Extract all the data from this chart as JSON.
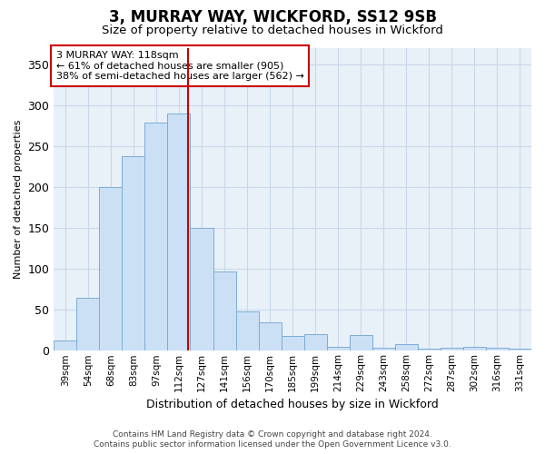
{
  "title": "3, MURRAY WAY, WICKFORD, SS12 9SB",
  "subtitle": "Size of property relative to detached houses in Wickford",
  "xlabel": "Distribution of detached houses by size in Wickford",
  "ylabel": "Number of detached properties",
  "footnote1": "Contains HM Land Registry data © Crown copyright and database right 2024.",
  "footnote2": "Contains public sector information licensed under the Open Government Licence v3.0.",
  "bar_labels": [
    "39sqm",
    "54sqm",
    "68sqm",
    "83sqm",
    "97sqm",
    "112sqm",
    "127sqm",
    "141sqm",
    "156sqm",
    "170sqm",
    "185sqm",
    "199sqm",
    "214sqm",
    "229sqm",
    "243sqm",
    "258sqm",
    "272sqm",
    "287sqm",
    "302sqm",
    "316sqm",
    "331sqm"
  ],
  "bar_values": [
    12,
    65,
    200,
    238,
    278,
    290,
    150,
    97,
    48,
    35,
    18,
    20,
    5,
    19,
    4,
    8,
    2,
    4,
    5,
    4,
    3
  ],
  "bar_color": "#cce0f5",
  "bar_edge_color": "#7badd4",
  "grid_color": "#c8d8ea",
  "background_color": "#ffffff",
  "plot_bg_color": "#e8f0f8",
  "vline_color": "#cc0000",
  "vline_x_index": 5.4,
  "annotation_line1": "3 MURRAY WAY: 118sqm",
  "annotation_line2": "← 61% of detached houses are smaller (905)",
  "annotation_line3": "38% of semi-detached houses are larger (562) →",
  "annotation_box_color": "#ffffff",
  "annotation_box_edge": "#cc0000",
  "ylim": [
    0,
    370
  ],
  "yticks": [
    0,
    50,
    100,
    150,
    200,
    250,
    300,
    350
  ]
}
